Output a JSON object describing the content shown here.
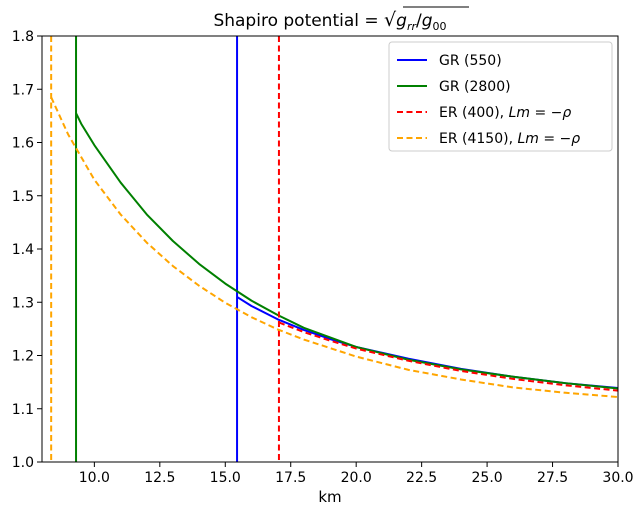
{
  "chart_data": {
    "type": "line",
    "title": "Shapiro potential = √(g_rr/g_00)",
    "title_parts": {
      "prefix": "Shapiro potential = ",
      "num_base": "g",
      "num_sub": "rr",
      "slash": "/",
      "den_base": "g",
      "den_sub": "00"
    },
    "xlabel": "km",
    "ylabel": "",
    "xlim": [
      8.0,
      30.0
    ],
    "ylim": [
      1.0,
      1.8
    ],
    "xticks": [
      10.0,
      12.5,
      15.0,
      17.5,
      20.0,
      22.5,
      25.0,
      27.5,
      30.0
    ],
    "xtick_labels": [
      "10.0",
      "12.5",
      "15.0",
      "17.5",
      "20.0",
      "22.5",
      "25.0",
      "27.5",
      "30.0"
    ],
    "yticks": [
      1.0,
      1.1,
      1.2,
      1.3,
      1.4,
      1.5,
      1.6,
      1.7,
      1.8
    ],
    "ytick_labels": [
      "1.0",
      "1.1",
      "1.2",
      "1.3",
      "1.4",
      "1.5",
      "1.6",
      "1.7",
      "1.8"
    ],
    "grid": false,
    "legend_position": "top-right",
    "series": [
      {
        "name": "GR (550)",
        "name_parts": [
          "GR (550)",
          ""
        ],
        "color": "#0000ff",
        "dash": "solid",
        "vertical_x": 15.45,
        "x": [
          15.45,
          16,
          17,
          18,
          19,
          20,
          22,
          24,
          26,
          28,
          30
        ],
        "y": [
          1.31,
          1.293,
          1.268,
          1.248,
          1.231,
          1.216,
          1.194,
          1.175,
          1.16,
          1.148,
          1.139
        ]
      },
      {
        "name": "GR (2800)",
        "name_parts": [
          "GR (2800)",
          ""
        ],
        "color": "#008000",
        "dash": "solid",
        "vertical_x": 9.3,
        "x": [
          9.3,
          9.5,
          10,
          11,
          12,
          13,
          14,
          15,
          16,
          17,
          18,
          20,
          22,
          24,
          26,
          28,
          30
        ],
        "y": [
          1.655,
          1.635,
          1.595,
          1.525,
          1.465,
          1.415,
          1.372,
          1.335,
          1.303,
          1.276,
          1.252,
          1.216,
          1.192,
          1.174,
          1.16,
          1.148,
          1.138
        ]
      },
      {
        "name": "ER (400), Lm = −ρ",
        "name_parts": [
          "ER (400), ",
          "Lm = −ρ"
        ],
        "color": "#ff0000",
        "dash": "dashed",
        "vertical_x": 17.05,
        "x": [
          17.05,
          18,
          19,
          20,
          22,
          24,
          26,
          28,
          30
        ],
        "y": [
          1.262,
          1.244,
          1.228,
          1.213,
          1.19,
          1.171,
          1.156,
          1.144,
          1.134
        ]
      },
      {
        "name": "ER (4150), Lm = −ρ",
        "name_parts": [
          "ER (4150), ",
          "Lm = −ρ"
        ],
        "color": "#ffa500",
        "dash": "dashed",
        "vertical_x": 8.35,
        "x": [
          8.35,
          9,
          10,
          11,
          12,
          13,
          14,
          15,
          16,
          17,
          18,
          20,
          22,
          24,
          26,
          28,
          30
        ],
        "y": [
          1.685,
          1.615,
          1.53,
          1.465,
          1.412,
          1.368,
          1.331,
          1.299,
          1.272,
          1.249,
          1.23,
          1.198,
          1.173,
          1.155,
          1.14,
          1.13,
          1.122
        ]
      }
    ]
  }
}
